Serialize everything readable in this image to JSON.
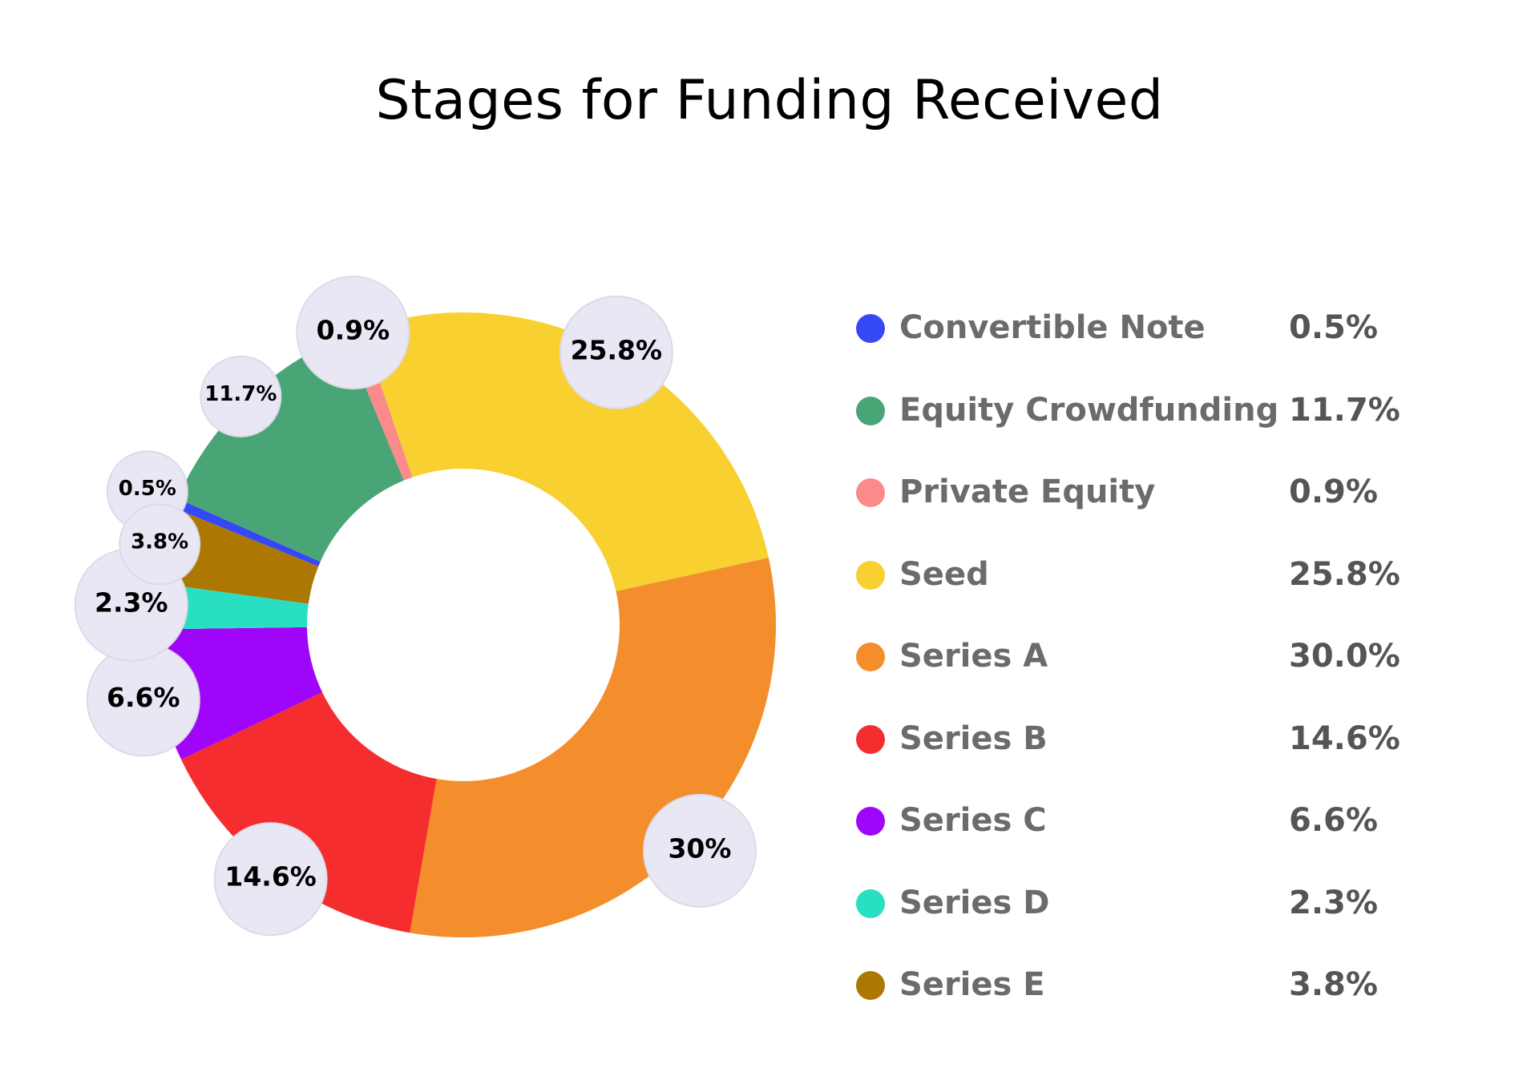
{
  "chart_data": {
    "type": "pie",
    "title": "Stages for Funding Received",
    "slices": [
      {
        "name": "Convertible Note",
        "value": 0.5,
        "label": "0.5%",
        "legend_value": "0.5%",
        "color": "#3548f5"
      },
      {
        "name": "Equity Crowdfunding",
        "value": 11.7,
        "label": "11.7%",
        "legend_value": "11.7%",
        "color": "#4aa576"
      },
      {
        "name": "Private Equity",
        "value": 0.9,
        "label": "0.9%",
        "legend_value": "0.9%",
        "color": "#fb8b8b"
      },
      {
        "name": "Seed",
        "value": 25.8,
        "label": "25.8%",
        "legend_value": "25.8%",
        "color": "#f8d02f"
      },
      {
        "name": "Series A",
        "value": 30.0,
        "label": "30%",
        "legend_value": "30.0%",
        "color": "#f48e2c"
      },
      {
        "name": "Series B",
        "value": 14.6,
        "label": "14.6%",
        "legend_value": "14.6%",
        "color": "#f52d2f"
      },
      {
        "name": "Series C",
        "value": 6.6,
        "label": "6.6%",
        "legend_value": "6.6%",
        "color": "#9f06f9"
      },
      {
        "name": "Series D",
        "value": 2.3,
        "label": "2.3%",
        "legend_value": "2.3%",
        "color": "#29dfc1"
      },
      {
        "name": "Series E",
        "value": 3.8,
        "label": "3.8%",
        "legend_value": "3.8%",
        "color": "#ac7802"
      }
    ],
    "legend_position": "right"
  }
}
